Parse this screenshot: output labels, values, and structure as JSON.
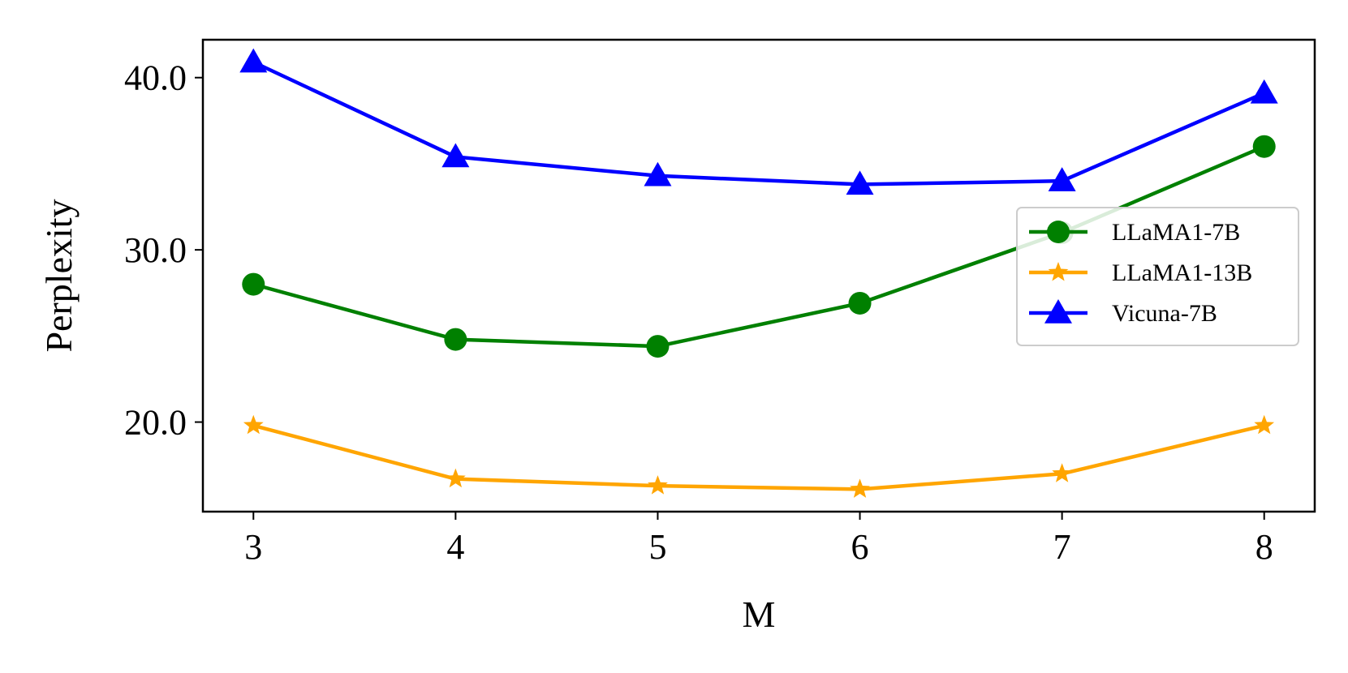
{
  "chart_data": {
    "type": "line",
    "title": "",
    "xlabel": "M",
    "ylabel": "Perplexity",
    "x": [
      3,
      4,
      5,
      6,
      7,
      8
    ],
    "xlim": [
      2.75,
      8.25
    ],
    "ylim": [
      14.8,
      42.2
    ],
    "yticks": [
      20.0,
      30.0,
      40.0
    ],
    "ytick_labels": [
      "20.0",
      "30.0",
      "40.0"
    ],
    "xtick_labels": [
      "3",
      "4",
      "5",
      "6",
      "7",
      "8"
    ],
    "grid": false,
    "legend_position": "center-right",
    "series": [
      {
        "name": "LLaMA1-7B",
        "color": "#008000",
        "marker": "circle",
        "values": [
          28.0,
          24.8,
          24.4,
          26.9,
          31.0,
          36.0
        ]
      },
      {
        "name": "LLaMA1-13B",
        "color": "#FFA500",
        "marker": "star",
        "values": [
          19.8,
          16.7,
          16.3,
          16.1,
          17.0,
          19.8
        ]
      },
      {
        "name": "Vicuna-7B",
        "color": "#0000FF",
        "marker": "triangle",
        "values": [
          40.9,
          35.4,
          34.3,
          33.8,
          34.0,
          39.1
        ]
      }
    ]
  }
}
